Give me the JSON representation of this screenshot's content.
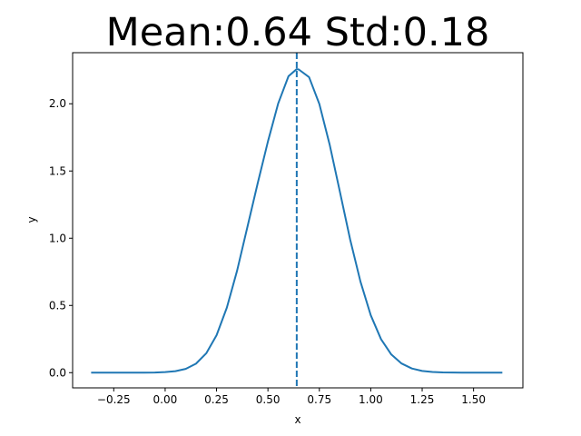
{
  "chart_data": {
    "type": "line",
    "title": "Mean:0.64 Std:0.18",
    "xlabel": "x",
    "ylabel": "y",
    "xlim": [
      -0.45,
      1.74
    ],
    "ylim": [
      -0.113,
      2.38
    ],
    "xticks": [
      -0.25,
      0.0,
      0.25,
      0.5,
      0.75,
      1.0,
      1.25,
      1.5
    ],
    "xtick_labels": [
      "−0.25",
      "0.00",
      "0.25",
      "0.50",
      "0.75",
      "1.00",
      "1.25",
      "1.50"
    ],
    "yticks": [
      0.0,
      0.5,
      1.0,
      1.5,
      2.0
    ],
    "ytick_labels": [
      "0.0",
      "0.5",
      "1.0",
      "1.5",
      "2.0"
    ],
    "grid": false,
    "series": [
      {
        "style": "solid",
        "color": "#1f77b4",
        "x": [
          -0.36,
          -0.3,
          -0.25,
          -0.2,
          -0.15,
          -0.1,
          -0.05,
          0.0,
          0.05,
          0.1,
          0.15,
          0.2,
          0.25,
          0.3,
          0.35,
          0.4,
          0.45,
          0.5,
          0.55,
          0.6,
          0.64,
          0.65,
          0.7,
          0.75,
          0.8,
          0.85,
          0.9,
          0.95,
          1.0,
          1.05,
          1.1,
          1.15,
          1.2,
          1.25,
          1.3,
          1.35,
          1.4,
          1.45,
          1.5,
          1.55,
          1.6,
          1.64
        ],
        "y": [
          0.0,
          0.0,
          0.0,
          0.0,
          0.0,
          0.0,
          0.001,
          0.004,
          0.011,
          0.028,
          0.067,
          0.144,
          0.278,
          0.483,
          0.759,
          1.083,
          1.408,
          1.72,
          2.003,
          2.205,
          2.258,
          2.255,
          2.198,
          1.998,
          1.697,
          1.345,
          0.989,
          0.677,
          0.427,
          0.249,
          0.135,
          0.068,
          0.031,
          0.013,
          0.005,
          0.002,
          0.001,
          0.0,
          0.0,
          0.0,
          0.0,
          0.0
        ]
      }
    ],
    "vline": {
      "x": 0.64,
      "style": "dashed",
      "color": "#1f77b4"
    }
  }
}
